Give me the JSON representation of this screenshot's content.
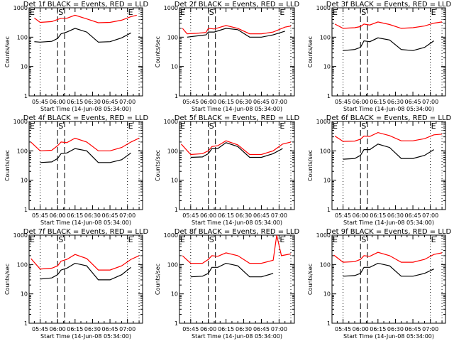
{
  "figure": {
    "x_tick_labels": [
      "05:45",
      "06:00",
      "06:15",
      "06:30",
      "06:45",
      "07:00"
    ],
    "xlabel": "Start Time (14-Jun-08 05:34:00)",
    "ylabel": "Counts/sec",
    "y_tick_labels": [
      "1",
      "10",
      "100",
      "1000"
    ],
    "markers": {
      "start_label": "E",
      "sun_label": "S",
      "end_label": "E"
    },
    "colors": {
      "events": "#000000",
      "lld": "#ff0000"
    }
  },
  "chart_data": [
    {
      "type": "line",
      "title": "Det 1f BLACK = Events, RED = LLD",
      "xlabel": "Start Time (14-Jun-08 05:34:00)",
      "ylabel": "Counts/sec",
      "yscale": "log",
      "ylim": [
        1,
        1000
      ],
      "x": [
        "05:40",
        "05:45",
        "05:55",
        "06:00",
        "06:03",
        "06:08",
        "06:15",
        "06:25",
        "06:35",
        "06:45",
        "06:55",
        "07:03",
        "07:08"
      ],
      "series": [
        {
          "name": "LLD",
          "color": "red",
          "values": [
            450,
            320,
            340,
            400,
            440,
            440,
            560,
            420,
            310,
            320,
            380,
            500,
            560
          ]
        },
        {
          "name": "Events",
          "color": "black",
          "values": [
            70,
            68,
            72,
            90,
            130,
            150,
            200,
            150,
            68,
            70,
            95,
            140,
            null
          ]
        }
      ]
    },
    {
      "type": "line",
      "title": "Det 2f BLACK = Events, RED = LLD",
      "xlabel": "Start Time (14-Jun-08 05:34:00)",
      "ylabel": "Counts/sec",
      "yscale": "log",
      "ylim": [
        1,
        1000
      ],
      "x": [
        "05:38",
        "05:42",
        "05:50",
        "05:58",
        "06:00",
        "06:05",
        "06:15",
        "06:25",
        "06:35",
        "06:45",
        "06:55",
        "07:05",
        "07:10"
      ],
      "series": [
        {
          "name": "LLD",
          "color": "red",
          "values": [
            200,
            130,
            135,
            145,
            200,
            190,
            250,
            200,
            130,
            130,
            150,
            220,
            240
          ]
        },
        {
          "name": "Events",
          "color": "black",
          "values": [
            null,
            100,
            110,
            120,
            150,
            150,
            200,
            180,
            100,
            100,
            120,
            160,
            null
          ]
        }
      ]
    },
    {
      "type": "line",
      "title": "Det 3f BLACK = Events, RED = LLD",
      "xlabel": "Start Time (14-Jun-08 05:34:00)",
      "ylabel": "Counts/sec",
      "yscale": "log",
      "ylim": [
        1,
        1000
      ],
      "x": [
        "05:38",
        "05:45",
        "05:55",
        "06:00",
        "06:03",
        "06:08",
        "06:15",
        "06:25",
        "06:35",
        "06:45",
        "06:55",
        "07:03",
        "07:10"
      ],
      "series": [
        {
          "name": "LLD",
          "color": "red",
          "values": [
            280,
            200,
            210,
            230,
            280,
            260,
            330,
            270,
            200,
            210,
            240,
            300,
            330
          ]
        },
        {
          "name": "Events",
          "color": "black",
          "values": [
            null,
            35,
            38,
            45,
            75,
            70,
            95,
            80,
            38,
            35,
            45,
            75,
            null
          ]
        }
      ]
    },
    {
      "type": "line",
      "title": "Det 4f BLACK = Events, RED = LLD",
      "xlabel": "Start Time (14-Jun-08 05:34:00)",
      "ylabel": "Counts/sec",
      "yscale": "log",
      "ylim": [
        1,
        1000
      ],
      "x": [
        "05:37",
        "05:45",
        "05:55",
        "06:00",
        "06:03",
        "06:08",
        "06:15",
        "06:25",
        "06:35",
        "06:45",
        "06:55",
        "07:03",
        "07:10"
      ],
      "series": [
        {
          "name": "LLD",
          "color": "red",
          "values": [
            200,
            100,
            105,
            150,
            200,
            190,
            270,
            200,
            100,
            100,
            130,
            200,
            270
          ]
        },
        {
          "name": "Events",
          "color": "black",
          "values": [
            null,
            40,
            42,
            55,
            80,
            85,
            120,
            100,
            40,
            40,
            50,
            85,
            null
          ]
        }
      ]
    },
    {
      "type": "line",
      "title": "Det 5f BLACK = Events, RED = LLD",
      "xlabel": "Start Time (14-Jun-08 05:34:00)",
      "ylabel": "Counts/sec",
      "yscale": "log",
      "ylim": [
        1,
        1000
      ],
      "x": [
        "05:37",
        "05:45",
        "05:55",
        "06:00",
        "06:03",
        "06:08",
        "06:15",
        "06:25",
        "06:35",
        "06:45",
        "06:55",
        "07:03",
        "07:10"
      ],
      "series": [
        {
          "name": "LLD",
          "color": "red",
          "values": [
            170,
            75,
            80,
            100,
            140,
            150,
            220,
            160,
            75,
            75,
            100,
            170,
            200
          ]
        },
        {
          "name": "Events",
          "color": "black",
          "values": [
            null,
            60,
            62,
            80,
            120,
            120,
            190,
            140,
            60,
            60,
            80,
            120,
            null
          ]
        }
      ]
    },
    {
      "type": "line",
      "title": "Det 6f BLACK = Events, RED = LLD",
      "xlabel": "Start Time (14-Jun-08 05:34:00)",
      "ylabel": "Counts/sec",
      "yscale": "log",
      "ylim": [
        1,
        1000
      ],
      "x": [
        "05:38",
        "05:45",
        "05:55",
        "06:00",
        "06:03",
        "06:08",
        "06:15",
        "06:25",
        "06:35",
        "06:45",
        "06:55",
        "07:03",
        "07:10"
      ],
      "series": [
        {
          "name": "LLD",
          "color": "red",
          "values": [
            320,
            210,
            215,
            250,
            320,
            310,
            420,
            330,
            220,
            220,
            260,
            350,
            370
          ]
        },
        {
          "name": "Events",
          "color": "black",
          "values": [
            null,
            52,
            55,
            70,
            110,
            110,
            170,
            130,
            55,
            55,
            70,
            110,
            null
          ]
        }
      ]
    },
    {
      "type": "line",
      "title": "Det 7f BLACK = Events, RED = LLD",
      "xlabel": "Start Time (14-Jun-08 05:34:00)",
      "ylabel": "Counts/sec",
      "yscale": "log",
      "ylim": [
        1,
        1000
      ],
      "x": [
        "05:37",
        "05:45",
        "05:55",
        "06:00",
        "06:03",
        "06:08",
        "06:15",
        "06:25",
        "06:35",
        "06:45",
        "06:55",
        "07:03",
        "07:10"
      ],
      "series": [
        {
          "name": "LLD",
          "color": "red",
          "values": [
            160,
            70,
            75,
            90,
            130,
            150,
            220,
            160,
            65,
            65,
            90,
            150,
            200
          ]
        },
        {
          "name": "Events",
          "color": "black",
          "values": [
            null,
            32,
            35,
            45,
            65,
            75,
            110,
            90,
            30,
            30,
            45,
            80,
            null
          ]
        }
      ]
    },
    {
      "type": "line",
      "title": "Det 8f BLACK = Events, RED = LLD",
      "xlabel": "Start Time (14-Jun-08 05:34:00)",
      "ylabel": "Counts/sec",
      "yscale": "log",
      "ylim": [
        1,
        1000
      ],
      "x": [
        "05:38",
        "05:45",
        "05:55",
        "06:00",
        "06:03",
        "06:08",
        "06:15",
        "06:25",
        "06:35",
        "06:45",
        "06:55",
        "06:58",
        "07:02",
        "07:10"
      ],
      "series": [
        {
          "name": "LLD",
          "color": "red",
          "values": [
            200,
            110,
            110,
            150,
            200,
            190,
            250,
            200,
            110,
            110,
            140,
            1000,
            200,
            230
          ]
        },
        {
          "name": "Events",
          "color": "black",
          "values": [
            null,
            38,
            40,
            50,
            80,
            80,
            110,
            90,
            38,
            38,
            50,
            null,
            80,
            null
          ]
        }
      ]
    },
    {
      "type": "line",
      "title": "Det 9f BLACK = Events, RED = LLD",
      "xlabel": "Start Time (14-Jun-08 05:34:00)",
      "ylabel": "Counts/sec",
      "yscale": "log",
      "ylim": [
        1,
        1000
      ],
      "x": [
        "05:37",
        "05:45",
        "05:55",
        "06:00",
        "06:03",
        "06:08",
        "06:15",
        "06:25",
        "06:35",
        "06:45",
        "06:55",
        "07:03",
        "07:10"
      ],
      "series": [
        {
          "name": "LLD",
          "color": "red",
          "values": [
            210,
            120,
            125,
            150,
            200,
            190,
            260,
            200,
            120,
            120,
            150,
            220,
            250
          ]
        },
        {
          "name": "Events",
          "color": "black",
          "values": [
            null,
            40,
            42,
            50,
            80,
            80,
            110,
            90,
            40,
            40,
            50,
            70,
            null
          ]
        }
      ]
    }
  ],
  "annotations": {
    "dotted_lines_minutes": [
      "05:45",
      "07:00",
      "07:10"
    ],
    "dashed_lines_minutes": [
      "06:00",
      "06:06"
    ]
  }
}
